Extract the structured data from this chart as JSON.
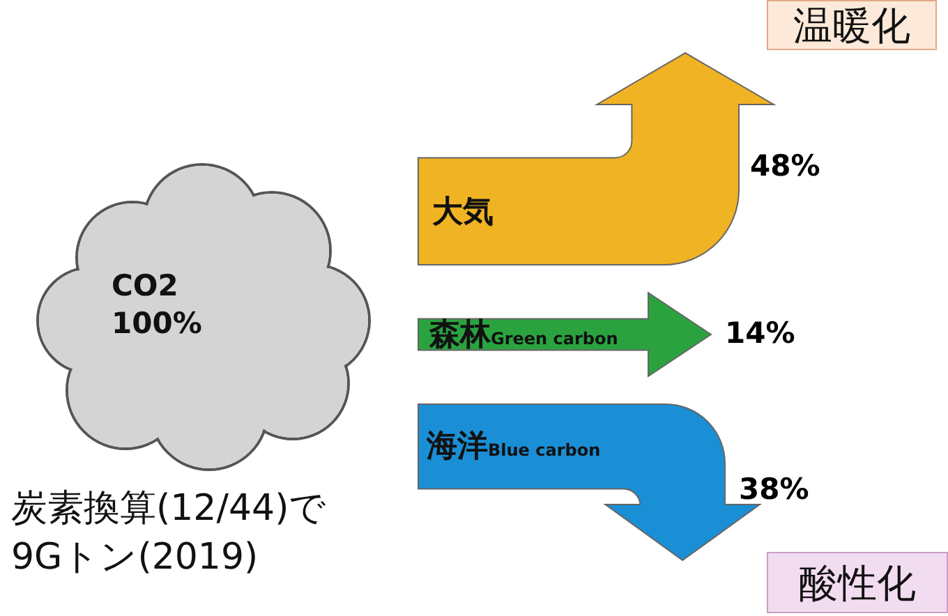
{
  "chart_data": {
    "type": "other",
    "categories": [
      "大気",
      "森林Green carbon",
      "海洋Blue carbon"
    ],
    "values": [
      48,
      14,
      38
    ],
    "colors": [
      "#f0b323",
      "#2aa33f",
      "#1a8fd6"
    ],
    "value_labels": [
      "48%",
      "14%",
      "38%"
    ],
    "annotations": [
      "温暖化",
      "酸性化",
      "CO2\n100%",
      "炭素換算(12/44)で\n9Gトン(2019)"
    ]
  }
}
